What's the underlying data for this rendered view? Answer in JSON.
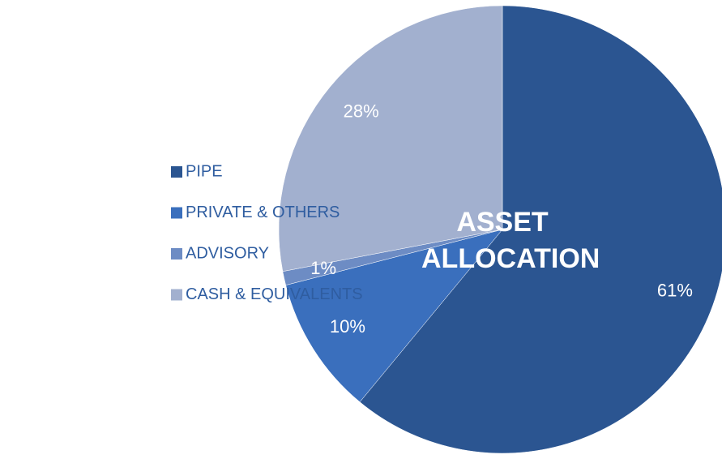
{
  "chart_data": {
    "type": "pie",
    "title": "ASSET ALLOCATION",
    "categories": [
      "PIPE",
      "PRIVATE & OTHERS",
      "ADVISORY",
      "CASH & EQUIVALENTS"
    ],
    "values": [
      61,
      10,
      1,
      28
    ],
    "value_labels": [
      "61%",
      "10%",
      "1%",
      "28%"
    ],
    "colors": [
      "#2b5591",
      "#3a6fbd",
      "#6d8cc4",
      "#a2b0cf"
    ],
    "legend": "left"
  }
}
